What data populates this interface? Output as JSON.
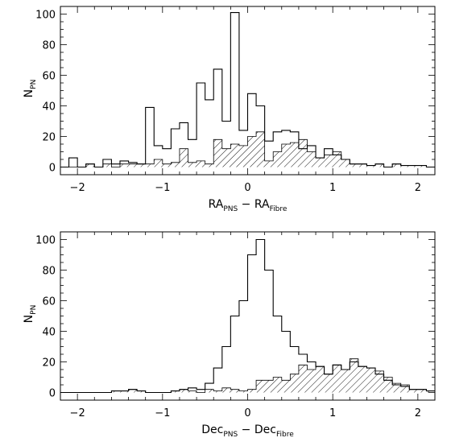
{
  "chart_data": [
    {
      "type": "histogram",
      "xlabel": {
        "main": "RA",
        "sub1": "PNS",
        "sep": " − RA",
        "sub2": "Fibre"
      },
      "ylabel": {
        "main": "N",
        "sub": "PN"
      },
      "xlim": [
        -2.2,
        2.2
      ],
      "ylim": [
        -5,
        105
      ],
      "x_ticks": [
        "−2",
        "−1",
        "0",
        "1",
        "2"
      ],
      "y_ticks": [
        "0",
        "20",
        "40",
        "60",
        "80",
        "100"
      ],
      "bin_start": -2.2,
      "bin_width": 0.1,
      "series": [
        {
          "style": "outline",
          "values": [
            0,
            6,
            0,
            2,
            0,
            5,
            2,
            4,
            3,
            2,
            39,
            14,
            12,
            25,
            29,
            18,
            55,
            44,
            64,
            30,
            101,
            24,
            48,
            40,
            17,
            23,
            24,
            23,
            12,
            14,
            6,
            12,
            8,
            5,
            2,
            2,
            1,
            2,
            0,
            2,
            1,
            1,
            1,
            0
          ]
        },
        {
          "style": "hatched",
          "values": [
            0,
            0,
            0,
            2,
            0,
            2,
            0,
            2,
            2,
            2,
            2,
            5,
            2,
            3,
            12,
            3,
            4,
            2,
            18,
            12,
            15,
            14,
            20,
            23,
            4,
            10,
            15,
            16,
            18,
            10,
            6,
            8,
            10,
            5,
            2,
            2,
            1,
            2,
            0,
            2,
            1,
            1,
            1,
            0
          ]
        }
      ]
    },
    {
      "type": "histogram",
      "xlabel": {
        "main": "Dec",
        "sub1": "PNS",
        "sep": " − Dec",
        "sub2": "Fibre"
      },
      "ylabel": {
        "main": "N",
        "sub": "PN"
      },
      "xlim": [
        -2.2,
        2.2
      ],
      "ylim": [
        -5,
        105
      ],
      "x_ticks": [
        "−2",
        "−1",
        "0",
        "1",
        "2"
      ],
      "y_ticks": [
        "0",
        "20",
        "40",
        "60",
        "80",
        "100"
      ],
      "bin_start": -2.2,
      "bin_width": 0.1,
      "series": [
        {
          "style": "outline",
          "values": [
            0,
            0,
            0,
            0,
            0,
            0,
            1,
            1,
            2,
            1,
            0,
            0,
            0,
            1,
            2,
            3,
            2,
            6,
            16,
            30,
            50,
            60,
            90,
            100,
            80,
            50,
            40,
            30,
            25,
            20,
            17,
            12,
            18,
            15,
            20,
            17,
            16,
            12,
            8,
            5,
            4,
            2,
            2,
            1
          ]
        },
        {
          "style": "hatched",
          "values": [
            0,
            0,
            0,
            0,
            0,
            0,
            1,
            1,
            2,
            1,
            0,
            0,
            0,
            1,
            2,
            1,
            0,
            2,
            1,
            3,
            2,
            1,
            2,
            8,
            8,
            10,
            8,
            12,
            18,
            15,
            17,
            12,
            18,
            15,
            22,
            17,
            16,
            14,
            10,
            6,
            5,
            2,
            2,
            1
          ]
        }
      ]
    }
  ]
}
